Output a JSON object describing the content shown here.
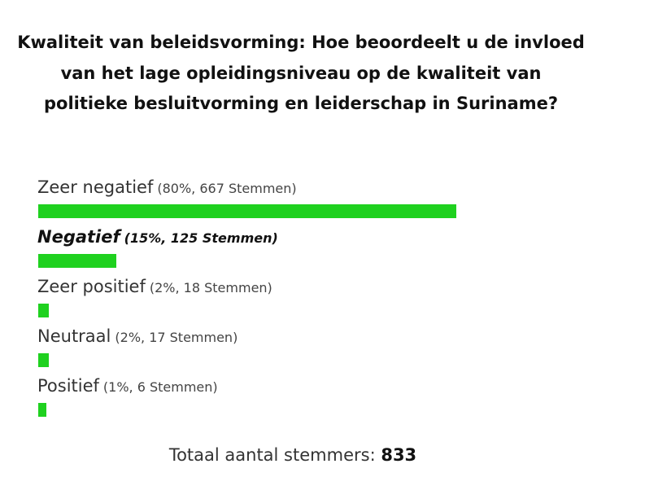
{
  "poll": {
    "question": "Kwaliteit van beleidsvorming: Hoe beoordeelt u de invloed van het lage opleidingsniveau op de kwaliteit van politieke besluitvorming en leiderschap in Suriname?",
    "total_label": "Totaal aantal stemmers:",
    "total_value": "833",
    "bar_color": "#1fd11f",
    "selected_option": "Negatief"
  },
  "chart_data": {
    "type": "bar",
    "orientation": "horizontal",
    "title": "Kwaliteit van beleidsvorming: Hoe beoordeelt u de invloed van het lage opleidingsniveau op de kwaliteit van politieke besluitvorming en leiderschap in Suriname?",
    "categories": [
      "Zeer negatief",
      "Negatief",
      "Zeer positief",
      "Neutraal",
      "Positief"
    ],
    "values": [
      80,
      15,
      2,
      2,
      1
    ],
    "votes": [
      667,
      125,
      18,
      17,
      6
    ],
    "stats_labels": [
      "(80%, 667 Stemmen)",
      "(15%, 125 Stemmen)",
      "(2%, 18 Stemmen)",
      "(2%, 17 Stemmen)",
      "(1%, 6 Stemmen)"
    ],
    "unit": "%",
    "ylim": [
      0,
      80
    ],
    "grid": false
  }
}
